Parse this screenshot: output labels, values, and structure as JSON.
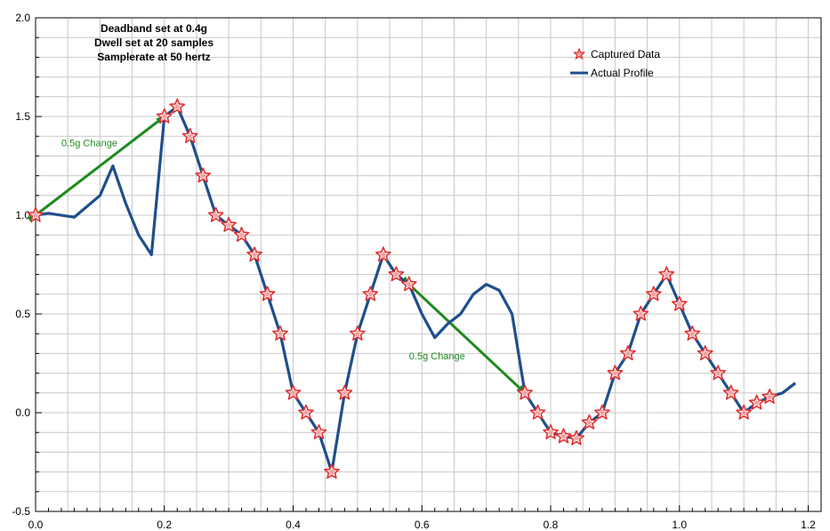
{
  "chart_data": {
    "type": "line",
    "title": "",
    "xlabel": "",
    "ylabel": "",
    "xlim": [
      0.0,
      1.22
    ],
    "ylim": [
      -0.5,
      2.0
    ],
    "xticks": [
      "0.0",
      "0.2",
      "0.4",
      "0.6",
      "0.8",
      "1.0",
      "1.2"
    ],
    "yticks": [
      "-0.5",
      "0.0",
      "0.5",
      "1.0",
      "1.5",
      "2.0"
    ],
    "grid": true,
    "notes": [
      "Deadband set at 0.4g",
      "Dwell set at 20 samples",
      "Samplerate at 50 hertz"
    ],
    "legend": {
      "position": "top-right",
      "entries": [
        "Captured Data",
        "Actual Profile"
      ]
    },
    "series": [
      {
        "name": "Actual Profile",
        "color": "#1f4e8c",
        "x": [
          0.0,
          0.02,
          0.06,
          0.1,
          0.12,
          0.14,
          0.16,
          0.18,
          0.2,
          0.22,
          0.24,
          0.26,
          0.28,
          0.3,
          0.32,
          0.34,
          0.36,
          0.38,
          0.4,
          0.42,
          0.44,
          0.46,
          0.48,
          0.5,
          0.52,
          0.54,
          0.56,
          0.58,
          0.6,
          0.62,
          0.64,
          0.66,
          0.68,
          0.7,
          0.72,
          0.74,
          0.76,
          0.78,
          0.8,
          0.82,
          0.84,
          0.86,
          0.88,
          0.9,
          0.92,
          0.94,
          0.96,
          0.98,
          1.0,
          1.02,
          1.04,
          1.06,
          1.08,
          1.1,
          1.12,
          1.14,
          1.16,
          1.18
        ],
        "y": [
          1.0,
          1.01,
          0.99,
          1.1,
          1.25,
          1.06,
          0.9,
          0.8,
          1.5,
          1.55,
          1.4,
          1.2,
          1.0,
          0.95,
          0.9,
          0.8,
          0.6,
          0.4,
          0.1,
          0.0,
          -0.1,
          -0.3,
          0.1,
          0.4,
          0.6,
          0.8,
          0.7,
          0.65,
          0.5,
          0.38,
          0.45,
          0.5,
          0.6,
          0.65,
          0.62,
          0.5,
          0.1,
          0.0,
          -0.1,
          -0.12,
          -0.13,
          -0.05,
          0.0,
          0.2,
          0.3,
          0.5,
          0.6,
          0.7,
          0.55,
          0.4,
          0.3,
          0.2,
          0.1,
          0.0,
          0.05,
          0.08,
          0.1,
          0.15
        ]
      },
      {
        "name": "Captured Data",
        "color": "#e03030",
        "marker": "star",
        "x": [
          0.0,
          0.2,
          0.22,
          0.24,
          0.26,
          0.28,
          0.3,
          0.32,
          0.34,
          0.36,
          0.38,
          0.4,
          0.42,
          0.44,
          0.46,
          0.48,
          0.5,
          0.52,
          0.54,
          0.56,
          0.58,
          0.76,
          0.78,
          0.8,
          0.82,
          0.84,
          0.86,
          0.88,
          0.9,
          0.92,
          0.94,
          0.96,
          0.98,
          1.0,
          1.02,
          1.04,
          1.06,
          1.08,
          1.1,
          1.12,
          1.14
        ],
        "y": [
          1.0,
          1.5,
          1.55,
          1.4,
          1.2,
          1.0,
          0.95,
          0.9,
          0.8,
          0.6,
          0.4,
          0.1,
          0.0,
          -0.1,
          -0.3,
          0.1,
          0.4,
          0.6,
          0.8,
          0.7,
          0.65,
          0.1,
          0.0,
          -0.1,
          -0.12,
          -0.13,
          -0.05,
          0.0,
          0.2,
          0.3,
          0.5,
          0.6,
          0.7,
          0.55,
          0.4,
          0.3,
          0.2,
          0.1,
          0.0,
          0.05,
          0.08
        ]
      }
    ],
    "annotations": [
      {
        "text": "0.5g Change",
        "from": [
          0.0,
          1.0
        ],
        "to": [
          0.2,
          1.5
        ],
        "label_at": [
          0.04,
          1.35
        ]
      },
      {
        "text": "0.5g Change",
        "from": [
          0.58,
          0.65
        ],
        "to": [
          0.76,
          0.1
        ],
        "label_at": [
          0.58,
          0.27
        ]
      }
    ]
  }
}
